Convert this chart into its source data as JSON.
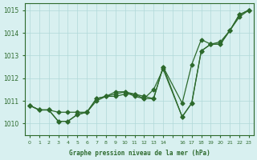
{
  "x_hours": [
    0,
    1,
    2,
    3,
    4,
    5,
    6,
    7,
    8,
    9,
    10,
    11,
    12,
    13,
    14,
    16,
    17,
    18,
    19,
    20,
    21,
    22,
    23
  ],
  "line1": [
    1010.8,
    1010.6,
    1010.6,
    1010.1,
    1010.1,
    1010.4,
    1010.5,
    1011.1,
    1011.2,
    1011.2,
    1011.3,
    1011.3,
    1011.2,
    1011.1,
    1012.5,
    1010.9,
    1012.6,
    1013.7,
    1013.5,
    1013.6,
    1014.1,
    1014.8,
    1015.0
  ],
  "line2": [
    1010.8,
    1010.6,
    1010.6,
    1010.5,
    1010.5,
    1010.5,
    1010.5,
    1011.1,
    1011.2,
    1011.3,
    1011.4,
    1011.3,
    1011.1,
    1011.5,
    1012.4,
    1010.3,
    1010.9,
    1013.2,
    1013.5,
    1013.5,
    1014.1,
    1014.8,
    1015.0
  ],
  "line3": [
    1010.8,
    1010.6,
    1010.6,
    1010.1,
    1010.1,
    1010.4,
    1010.5,
    1011.0,
    1011.2,
    1011.4,
    1011.4,
    1011.2,
    1011.1,
    1011.1,
    1012.5,
    1010.3,
    1010.9,
    1013.2,
    1013.5,
    1013.5,
    1014.1,
    1014.7,
    1015.0
  ],
  "line_color": "#2d6a2d",
  "bg_color": "#d8f0f0",
  "grid_color": "#b0d8d8",
  "title": "Graphe pression niveau de la mer (hPa)",
  "ylim": [
    1009.5,
    1015.3
  ],
  "yticks": [
    1010,
    1011,
    1012,
    1013,
    1014,
    1015
  ],
  "xtick_labels": [
    "0",
    "1",
    "2",
    "3",
    "4",
    "5",
    "6",
    "7",
    "8",
    "9",
    "10",
    "11",
    "12",
    "13",
    "14",
    "",
    "16",
    "17",
    "18",
    "19",
    "20",
    "21",
    "22",
    "23"
  ],
  "x_positions": [
    0,
    1,
    2,
    3,
    4,
    5,
    6,
    7,
    8,
    9,
    10,
    11,
    12,
    13,
    14,
    15,
    16,
    17,
    18,
    19,
    20,
    21,
    22,
    23
  ]
}
